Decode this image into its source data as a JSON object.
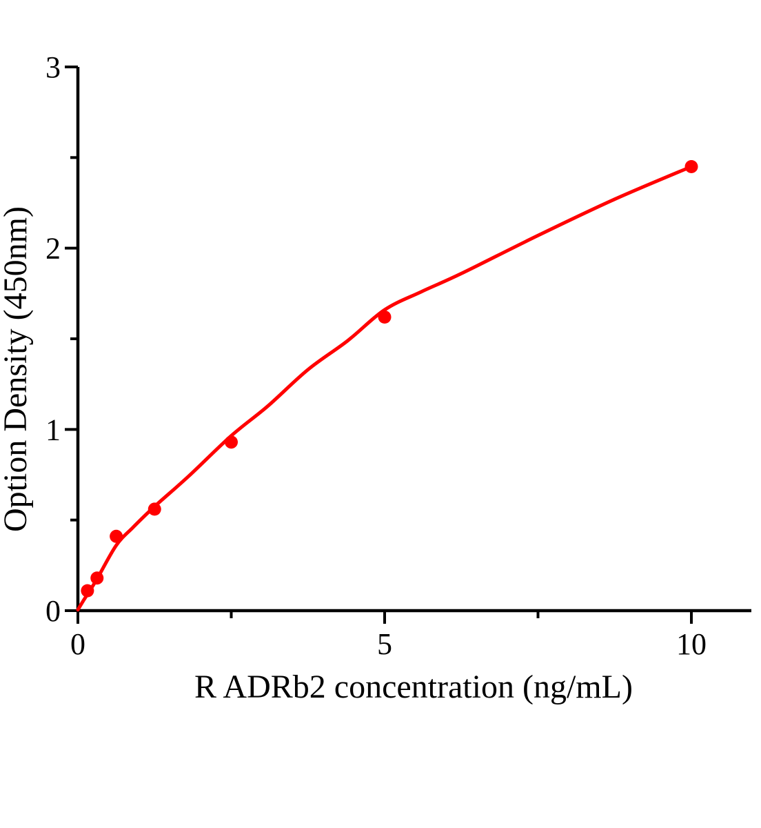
{
  "figure": {
    "background_color": "#ffffff"
  },
  "chart_data": {
    "type": "scatter",
    "title": "",
    "xlabel": "R ADRb2 concentration（ng/mL）",
    "ylabel": "Option Density（450nm）",
    "xlim": [
      0,
      10
    ],
    "ylim": [
      0,
      3
    ],
    "x_major_ticks": [
      0,
      5,
      10
    ],
    "x_minor_ticks": [
      2.5,
      7.5
    ],
    "y_major_ticks": [
      0,
      1,
      2,
      3
    ],
    "y_minor_ticks": [
      0.5,
      1.5,
      2.5
    ],
    "grid": false,
    "legend": null,
    "axis_color": "#000000",
    "line_color": "#ff0000",
    "marker_color": "#ff0000",
    "marker": "circle",
    "points": [
      {
        "x": 0.156,
        "y": 0.11
      },
      {
        "x": 0.312,
        "y": 0.18
      },
      {
        "x": 0.625,
        "y": 0.41
      },
      {
        "x": 1.25,
        "y": 0.56
      },
      {
        "x": 2.5,
        "y": 0.93
      },
      {
        "x": 5,
        "y": 1.62
      },
      {
        "x": 10,
        "y": 2.45
      }
    ],
    "fit_curve": [
      [
        0,
        0.005
      ],
      [
        0.08,
        0.05
      ],
      [
        0.156,
        0.09
      ],
      [
        0.312,
        0.175
      ],
      [
        0.625,
        0.36
      ],
      [
        0.9,
        0.46
      ],
      [
        1.25,
        0.575
      ],
      [
        1.8,
        0.74
      ],
      [
        2.5,
        0.965
      ],
      [
        3.1,
        1.13
      ],
      [
        3.75,
        1.33
      ],
      [
        4.4,
        1.49
      ],
      [
        5,
        1.66
      ],
      [
        5.6,
        1.76
      ],
      [
        6.25,
        1.86
      ],
      [
        7.5,
        2.07
      ],
      [
        8.75,
        2.27
      ],
      [
        10,
        2.45
      ]
    ]
  }
}
